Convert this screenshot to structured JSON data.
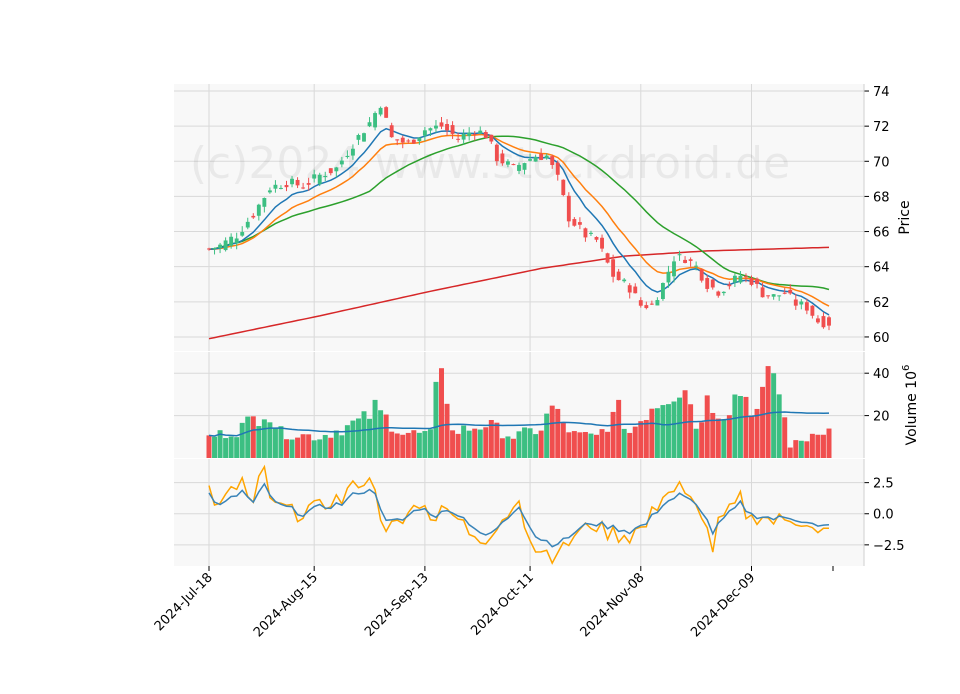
{
  "chart_data": {
    "type": "candlestick",
    "watermark": "(c)2024 www.stockdroid.de",
    "x_tick_labels": [
      "2024-Jul-18",
      "2024-Aug-15",
      "2024-Sep-13",
      "2024-Oct-11",
      "2024-Nov-08",
      "2024-Dec-09"
    ],
    "colors": {
      "up": "#3cbf82",
      "down": "#f04e4e",
      "ma_fast": "#1f77b4",
      "ma_mid": "#ff7f0e",
      "ma_slow": "#2ca02c",
      "ma_long": "#d62728",
      "osc_line": "#3a84b8",
      "osc_signal": "#ffa500",
      "panel_bg": "#f8f8f8",
      "grid": "#d9d9d9"
    },
    "panels": [
      {
        "id": "price",
        "ylabel": "Price",
        "ylim": [
          59.2,
          74.4
        ],
        "yticks": [
          "60",
          "62",
          "64",
          "66",
          "68",
          "70",
          "72",
          "74"
        ],
        "tick_values": [
          60,
          62,
          64,
          66,
          68,
          70,
          72,
          74
        ]
      },
      {
        "id": "volume",
        "ylabel": "Volume",
        "ylabel_exp": "6",
        "ylabel_base": "10",
        "ylim": [
          0,
          50
        ],
        "yticks": [
          "20",
          "40"
        ],
        "tick_values": [
          20,
          40
        ]
      },
      {
        "id": "oscillator",
        "ylabel": "",
        "ylim": [
          -4.2,
          4.4
        ],
        "yticks": [
          "2.5",
          "0.0",
          "−2.5"
        ],
        "tick_values": [
          2.5,
          0,
          -2.5
        ]
      }
    ],
    "price_anchors": [
      [
        0,
        65.0
      ],
      [
        2,
        65.2
      ],
      [
        5,
        65.8
      ],
      [
        8,
        67.0
      ],
      [
        11,
        68.5
      ],
      [
        14,
        68.8
      ],
      [
        17,
        68.6
      ],
      [
        20,
        69.2
      ],
      [
        23,
        69.6
      ],
      [
        26,
        71.0
      ],
      [
        29,
        72.2
      ],
      [
        31,
        73.3
      ],
      [
        33,
        71.3
      ],
      [
        36,
        71.0
      ],
      [
        39,
        71.8
      ],
      [
        42,
        72.0
      ],
      [
        45,
        71.3
      ],
      [
        48,
        71.8
      ],
      [
        50,
        71.5
      ],
      [
        52,
        70.2
      ],
      [
        55,
        69.6
      ],
      [
        57,
        70.0
      ],
      [
        59,
        70.3
      ],
      [
        61,
        70.3
      ],
      [
        63,
        69.0
      ],
      [
        65,
        66.8
      ],
      [
        68,
        65.8
      ],
      [
        70,
        65.5
      ],
      [
        73,
        63.5
      ],
      [
        76,
        62.8
      ],
      [
        78,
        61.8
      ],
      [
        80,
        61.8
      ],
      [
        82,
        63.0
      ],
      [
        84,
        64.5
      ],
      [
        86,
        64.5
      ],
      [
        88,
        64.0
      ],
      [
        90,
        63.0
      ],
      [
        92,
        62.6
      ],
      [
        94,
        63.0
      ],
      [
        96,
        63.5
      ],
      [
        98,
        63.2
      ],
      [
        100,
        62.5
      ],
      [
        102,
        62.3
      ],
      [
        104,
        62.5
      ],
      [
        106,
        61.9
      ],
      [
        108,
        61.7
      ],
      [
        110,
        60.9
      ],
      [
        112,
        60.8
      ]
    ],
    "volume_anchors": [
      [
        0,
        10
      ],
      [
        5,
        13
      ],
      [
        9,
        20
      ],
      [
        10,
        24
      ],
      [
        13,
        12
      ],
      [
        20,
        10
      ],
      [
        28,
        18
      ],
      [
        30,
        23
      ],
      [
        35,
        12
      ],
      [
        40,
        11
      ],
      [
        42,
        49
      ],
      [
        44,
        12
      ],
      [
        50,
        16
      ],
      [
        55,
        10
      ],
      [
        60,
        14
      ],
      [
        62,
        24
      ],
      [
        64,
        16
      ],
      [
        66,
        11
      ],
      [
        70,
        10
      ],
      [
        74,
        22
      ],
      [
        76,
        12
      ],
      [
        80,
        25
      ],
      [
        86,
        36
      ],
      [
        88,
        15
      ],
      [
        90,
        27
      ],
      [
        93,
        22
      ],
      [
        96,
        32
      ],
      [
        99,
        22
      ],
      [
        102,
        42
      ],
      [
        105,
        6
      ],
      [
        108,
        9
      ],
      [
        110,
        14
      ],
      [
        112,
        13
      ]
    ],
    "oscillator_anchors": [
      [
        0,
        1.6
      ],
      [
        2,
        0.6
      ],
      [
        4,
        1.2
      ],
      [
        6,
        1.8
      ],
      [
        8,
        0.8
      ],
      [
        10,
        2.3
      ],
      [
        12,
        0.8
      ],
      [
        14,
        0.5
      ],
      [
        17,
        0.0
      ],
      [
        20,
        0.5
      ],
      [
        24,
        0.8
      ],
      [
        27,
        1.8
      ],
      [
        30,
        1.8
      ],
      [
        32,
        -0.7
      ],
      [
        35,
        -0.5
      ],
      [
        38,
        0.5
      ],
      [
        41,
        -0.1
      ],
      [
        44,
        0.3
      ],
      [
        47,
        -0.7
      ],
      [
        50,
        -1.9
      ],
      [
        53,
        -0.8
      ],
      [
        56,
        0.7
      ],
      [
        59,
        -1.8
      ],
      [
        62,
        -2.4
      ],
      [
        64,
        -2.2
      ],
      [
        66,
        -1.5
      ],
      [
        69,
        -0.7
      ],
      [
        72,
        -1.0
      ],
      [
        76,
        -1.4
      ],
      [
        79,
        -0.8
      ],
      [
        82,
        0.8
      ],
      [
        85,
        1.5
      ],
      [
        87,
        1.0
      ],
      [
        89,
        0.3
      ],
      [
        91,
        -1.5
      ],
      [
        93,
        -0.4
      ],
      [
        96,
        0.8
      ],
      [
        98,
        -0.1
      ],
      [
        100,
        -0.2
      ],
      [
        102,
        -0.4
      ],
      [
        105,
        -0.3
      ],
      [
        108,
        -0.6
      ],
      [
        110,
        -1.1
      ],
      [
        112,
        -1.0
      ]
    ],
    "ma_long_anchors": [
      [
        0,
        59.9
      ],
      [
        20,
        61.2
      ],
      [
        40,
        62.6
      ],
      [
        60,
        63.9
      ],
      [
        75,
        64.6
      ],
      [
        90,
        64.9
      ],
      [
        112,
        65.1
      ]
    ],
    "bar_count": 113
  }
}
